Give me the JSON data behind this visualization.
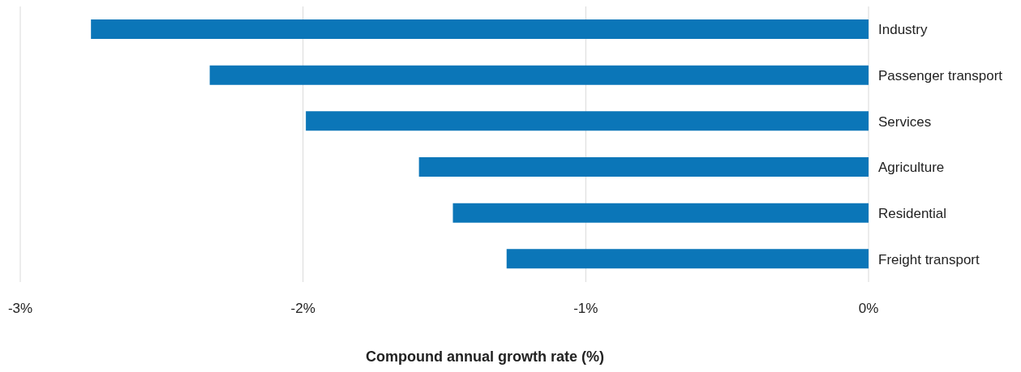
{
  "chart_data": {
    "type": "bar",
    "orientation": "horizontal",
    "xlabel": "Compound annual growth rate (%)",
    "categories": [
      "Industry",
      "Passenger transport",
      "Services",
      "Agriculture",
      "Residential",
      "Freight transport"
    ],
    "values": [
      -2.75,
      -2.33,
      -1.99,
      -1.59,
      -1.47,
      -1.28
    ],
    "color": "#0b76b8",
    "xlim": [
      -3,
      0
    ],
    "xticks": [
      {
        "value": -3,
        "label": "-3%"
      },
      {
        "value": -2,
        "label": "-2%"
      },
      {
        "value": -1,
        "label": "-1%"
      },
      {
        "value": 0,
        "label": "0%"
      }
    ],
    "grid": "x",
    "legend": false
  }
}
